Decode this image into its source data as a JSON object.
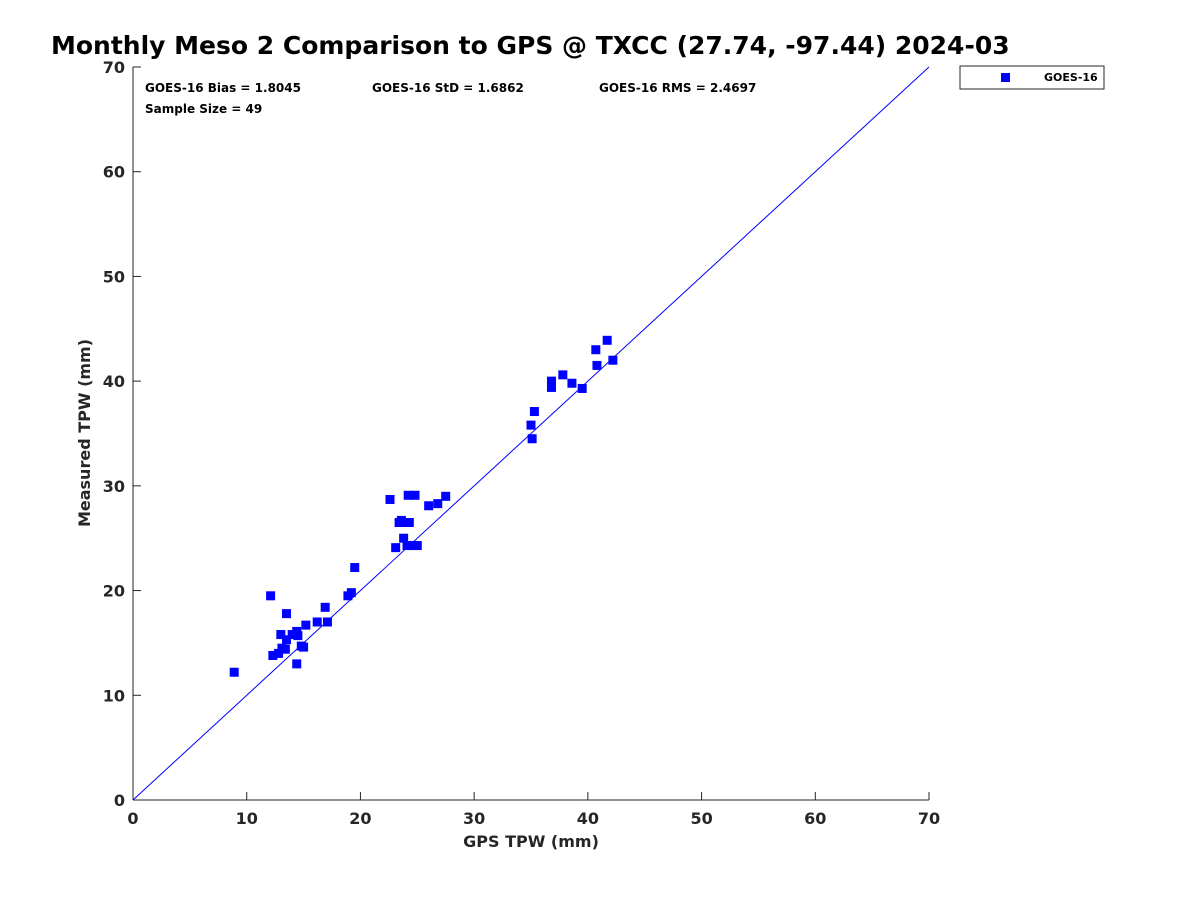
{
  "chart_data": {
    "type": "scatter",
    "title": "Monthly Meso 2 Comparison to GPS @ TXCC (27.74, -97.44) 2024-03",
    "xlabel": "GPS TPW (mm)",
    "ylabel": "Measured TPW (mm)",
    "xlim": [
      0,
      70
    ],
    "ylim": [
      0,
      70
    ],
    "xticks": [
      0,
      10,
      20,
      30,
      40,
      50,
      60,
      70
    ],
    "yticks": [
      0,
      10,
      20,
      30,
      40,
      50,
      60,
      70
    ],
    "grid": false,
    "legend_position": "outside top-right",
    "reference_line": {
      "label": "1:1 line",
      "from": [
        0,
        0
      ],
      "to": [
        70,
        70
      ],
      "color": "#0000ff"
    },
    "annotations": [
      "GOES-16 Bias = 1.8045",
      "GOES-16 StD = 1.6862",
      "GOES-16 RMS = 2.4697",
      "Sample Size = 49"
    ],
    "series": [
      {
        "name": "GOES-16",
        "marker": "square",
        "color": "#0000ff",
        "points": [
          [
            8.9,
            12.2
          ],
          [
            12.1,
            19.5
          ],
          [
            12.3,
            13.8
          ],
          [
            12.8,
            14.0
          ],
          [
            13.0,
            15.8
          ],
          [
            13.1,
            14.5
          ],
          [
            13.4,
            14.4
          ],
          [
            13.5,
            17.8
          ],
          [
            13.5,
            15.3
          ],
          [
            14.0,
            15.8
          ],
          [
            14.4,
            16.1
          ],
          [
            14.4,
            13.0
          ],
          [
            14.5,
            15.7
          ],
          [
            14.8,
            14.7
          ],
          [
            15.0,
            14.6
          ],
          [
            15.2,
            16.7
          ],
          [
            16.2,
            17.0
          ],
          [
            16.9,
            18.4
          ],
          [
            17.1,
            17.0
          ],
          [
            18.9,
            19.5
          ],
          [
            19.2,
            19.8
          ],
          [
            19.5,
            22.2
          ],
          [
            22.6,
            28.7
          ],
          [
            23.1,
            24.1
          ],
          [
            23.4,
            26.5
          ],
          [
            23.6,
            26.7
          ],
          [
            23.8,
            25.0
          ],
          [
            24.0,
            26.5
          ],
          [
            24.1,
            24.3
          ],
          [
            24.2,
            29.1
          ],
          [
            24.3,
            26.5
          ],
          [
            24.5,
            24.3
          ],
          [
            24.8,
            29.1
          ],
          [
            25.0,
            24.3
          ],
          [
            26.0,
            28.1
          ],
          [
            26.8,
            28.3
          ],
          [
            27.5,
            29.0
          ],
          [
            35.0,
            35.8
          ],
          [
            35.1,
            34.5
          ],
          [
            35.3,
            37.1
          ],
          [
            36.8,
            40.0
          ],
          [
            36.8,
            39.4
          ],
          [
            37.8,
            40.6
          ],
          [
            38.6,
            39.8
          ],
          [
            39.5,
            39.3
          ],
          [
            40.7,
            43.0
          ],
          [
            40.8,
            41.5
          ],
          [
            41.7,
            43.9
          ],
          [
            42.2,
            42.0
          ]
        ]
      }
    ]
  }
}
